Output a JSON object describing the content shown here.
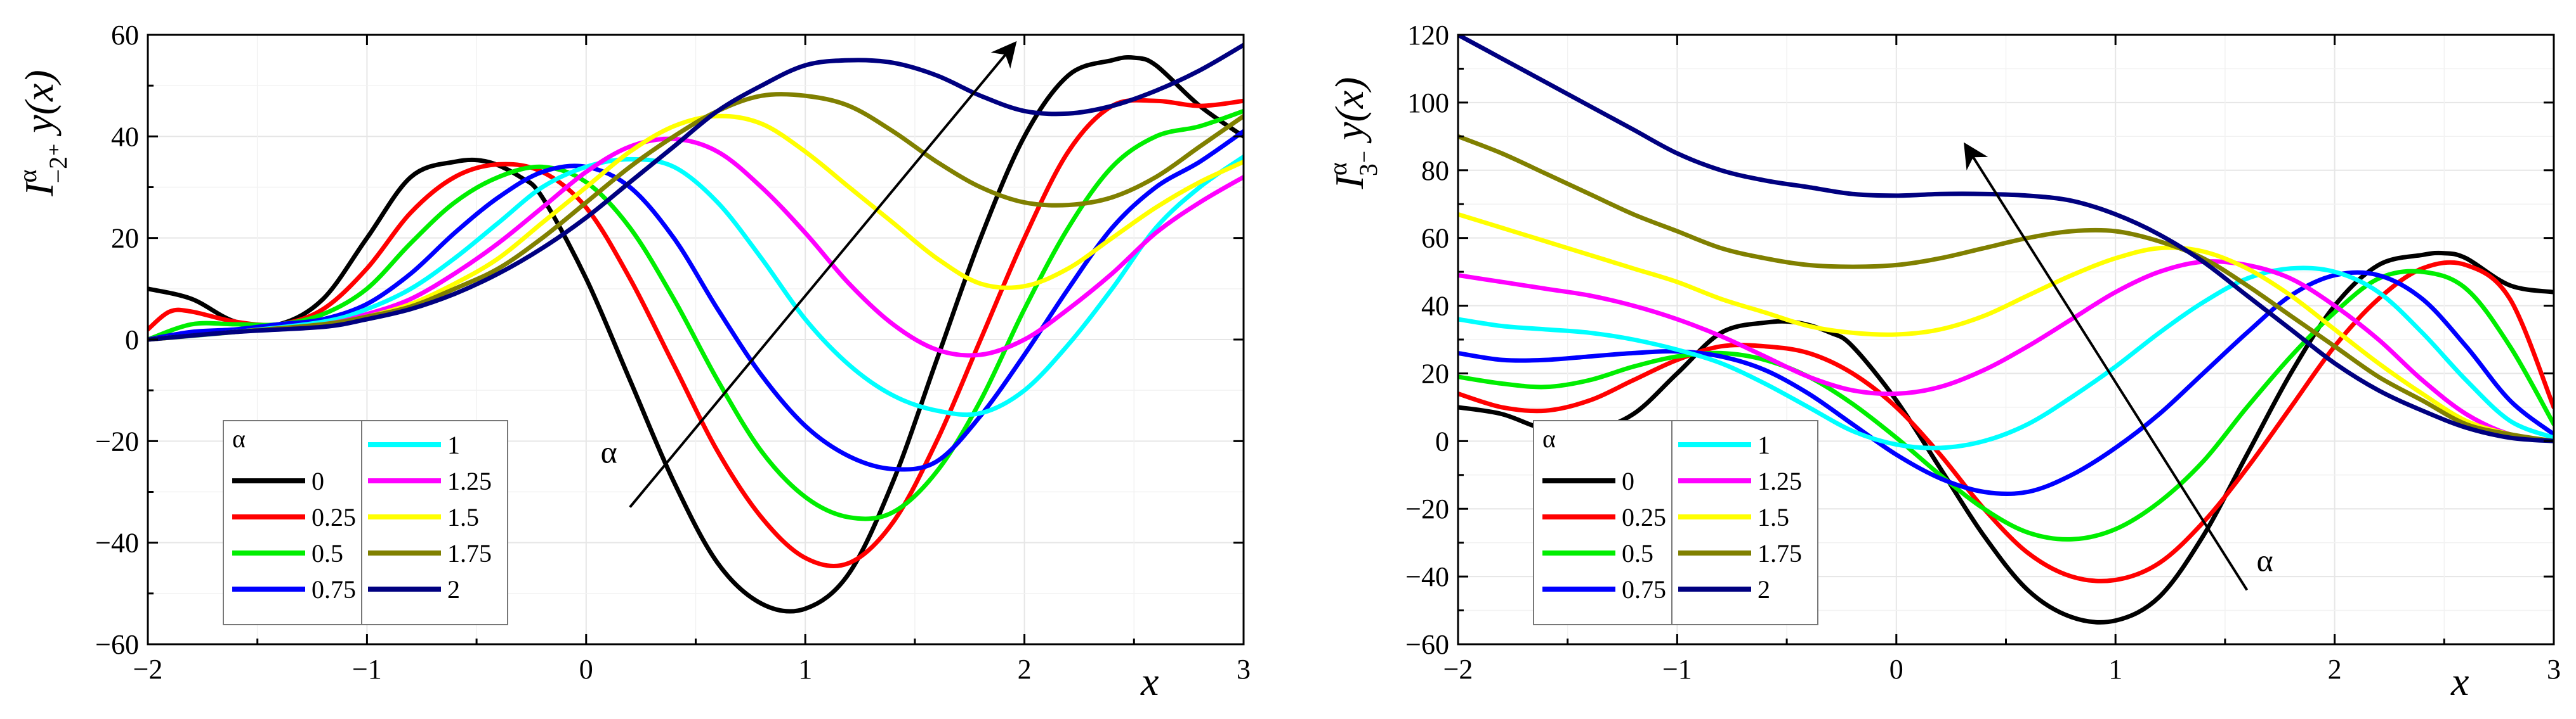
{
  "chart_data": [
    {
      "type": "line",
      "title": "",
      "ylabel": {
        "base": "I",
        "sup": "α",
        "sub": "−2⁺",
        "rest": " y(x)"
      },
      "xlabel": "x",
      "xlim": [
        -2,
        3
      ],
      "ylim": [
        -60,
        60
      ],
      "xticks": [
        -2,
        -1,
        0,
        1,
        2,
        3
      ],
      "yticks": [
        -60,
        -40,
        -20,
        0,
        20,
        40,
        60
      ],
      "xtick_labels": [
        "−2",
        "−1",
        "0",
        "1",
        "2",
        "3"
      ],
      "ytick_labels": [
        "−60",
        "−40",
        "−20",
        "0",
        "20",
        "40",
        "60"
      ],
      "grid": true,
      "legend_title": "α",
      "legend_position": "bottom-left",
      "arrow_label": "α",
      "arrow": {
        "from": [
          0.2,
          -33
        ],
        "to": [
          1.95,
          58
        ]
      },
      "series": [
        {
          "name": "0",
          "color": "#000000",
          "x": [
            -2,
            -1.8,
            -1.6,
            -1.4,
            -1.2,
            -1,
            -0.8,
            -0.6,
            -0.45,
            -0.3,
            -0.2,
            0,
            0.2,
            0.4,
            0.6,
            0.8,
            1,
            1.2,
            1.4,
            1.6,
            1.8,
            2,
            2.2,
            2.4,
            2.5,
            2.6,
            2.8,
            3
          ],
          "y": [
            10,
            8,
            3.5,
            3,
            8,
            20,
            32,
            35,
            35,
            32,
            28,
            12,
            -8,
            -28,
            -44,
            -52,
            -53,
            -46,
            -28,
            -4,
            20,
            40,
            52,
            55,
            55.5,
            54,
            46,
            40
          ]
        },
        {
          "name": "0.25",
          "color": "#ff0000",
          "x": [
            -2,
            -1.9,
            -1.8,
            -1.6,
            -1.4,
            -1.2,
            -1,
            -0.8,
            -0.6,
            -0.4,
            -0.2,
            0,
            0.2,
            0.4,
            0.6,
            0.8,
            1,
            1.2,
            1.4,
            1.6,
            1.8,
            2,
            2.2,
            2.4,
            2.6,
            2.8,
            3
          ],
          "y": [
            2,
            5.5,
            5.5,
            3.5,
            3,
            6,
            14,
            25,
            32,
            34.5,
            33,
            26,
            12,
            -5,
            -22,
            -35,
            -43,
            -44,
            -36,
            -20,
            0,
            20,
            37,
            46,
            47,
            46,
            47
          ]
        },
        {
          "name": "0.5",
          "color": "#00ee00",
          "x": [
            -2,
            -1.8,
            -1.6,
            -1.4,
            -1.2,
            -1,
            -0.8,
            -0.6,
            -0.4,
            -0.2,
            0,
            0.2,
            0.4,
            0.6,
            0.8,
            1,
            1.2,
            1.4,
            1.6,
            1.8,
            2,
            2.2,
            2.4,
            2.6,
            2.8,
            3
          ],
          "y": [
            0,
            3,
            3,
            3,
            5,
            10,
            19,
            27,
            32,
            34,
            31,
            22,
            8,
            -8,
            -22,
            -31,
            -35,
            -34,
            -26,
            -12,
            6,
            22,
            34,
            40,
            42,
            45
          ]
        },
        {
          "name": "0.75",
          "color": "#0000ff",
          "x": [
            -2,
            -1.8,
            -1.6,
            -1.4,
            -1.2,
            -1,
            -0.8,
            -0.6,
            -0.4,
            -0.2,
            0,
            0.2,
            0.4,
            0.6,
            0.8,
            1,
            1.2,
            1.4,
            1.6,
            1.8,
            2,
            2.2,
            2.4,
            2.6,
            2.8,
            3
          ],
          "y": [
            0,
            1.5,
            2,
            3,
            4,
            7,
            13,
            21,
            28,
            33,
            34,
            30,
            20,
            6,
            -7,
            -17,
            -23,
            -25.5,
            -24,
            -15,
            -3,
            10,
            22,
            30,
            35,
            41
          ]
        },
        {
          "name": "1",
          "color": "#00ffff",
          "x": [
            -2,
            -1.6,
            -1.2,
            -1,
            -0.8,
            -0.6,
            -0.4,
            -0.2,
            0,
            0.2,
            0.4,
            0.6,
            0.8,
            1,
            1.2,
            1.4,
            1.6,
            1.8,
            2,
            2.2,
            2.4,
            2.6,
            2.8,
            3
          ],
          "y": [
            0,
            1.5,
            3.5,
            6,
            10,
            16,
            23,
            30,
            34,
            35.5,
            34,
            27,
            16,
            4,
            -5,
            -11,
            -14,
            -14.5,
            -10,
            -1,
            10,
            22,
            30,
            36
          ]
        },
        {
          "name": "1.25",
          "color": "#ff00ff",
          "x": [
            -2,
            -1.6,
            -1.2,
            -1,
            -0.8,
            -0.6,
            -0.4,
            -0.2,
            0,
            0.2,
            0.4,
            0.6,
            0.8,
            1,
            1.2,
            1.4,
            1.6,
            1.8,
            2,
            2.2,
            2.4,
            2.6,
            2.8,
            3
          ],
          "y": [
            0,
            1.5,
            3,
            5,
            8,
            13,
            19,
            26,
            33,
            38,
            39.5,
            37,
            30,
            21,
            11,
            3,
            -2,
            -3,
            0,
            6,
            13,
            21,
            27,
            32
          ]
        },
        {
          "name": "1.5",
          "color": "#ffff00",
          "x": [
            -2,
            -1.6,
            -1.2,
            -1,
            -0.8,
            -0.6,
            -0.4,
            -0.2,
            0,
            0.2,
            0.4,
            0.6,
            0.8,
            1,
            1.2,
            1.4,
            1.6,
            1.8,
            2,
            2.2,
            2.4,
            2.6,
            2.8,
            3
          ],
          "y": [
            0,
            1.5,
            3,
            4.5,
            7,
            11,
            16,
            23,
            30,
            37,
            42,
            44,
            42.5,
            37,
            30,
            23,
            16,
            11,
            10.5,
            14,
            20,
            26,
            31,
            35
          ]
        },
        {
          "name": "1.75",
          "color": "#808000",
          "x": [
            -2,
            -1.6,
            -1.2,
            -1,
            -0.8,
            -0.6,
            -0.4,
            -0.2,
            0,
            0.2,
            0.4,
            0.6,
            0.8,
            1,
            1.2,
            1.4,
            1.6,
            1.8,
            2,
            2.2,
            2.4,
            2.6,
            2.8,
            3
          ],
          "y": [
            0,
            1.5,
            3,
            4.5,
            6.5,
            10,
            14,
            20,
            27,
            34,
            40,
            45,
            48,
            48,
            46,
            41,
            35,
            30,
            27,
            26.5,
            28,
            32,
            38,
            44
          ]
        },
        {
          "name": "2",
          "color": "#000080",
          "x": [
            -2,
            -1.6,
            -1.2,
            -1,
            -0.8,
            -0.6,
            -0.4,
            -0.2,
            0,
            0.2,
            0.4,
            0.6,
            0.8,
            1,
            1.2,
            1.4,
            1.6,
            1.8,
            2,
            2.2,
            2.4,
            2.6,
            2.8,
            3
          ],
          "y": [
            0,
            1.5,
            2.5,
            4,
            6,
            9,
            13,
            18,
            24,
            31,
            38,
            45,
            50,
            54,
            55,
            54.5,
            52,
            48,
            45,
            44.5,
            46,
            49,
            53,
            58
          ]
        }
      ]
    },
    {
      "type": "line",
      "title": "",
      "ylabel": {
        "base": "I",
        "sup": "α",
        "sub": "3⁻",
        "rest": " y(x)"
      },
      "xlabel": "x",
      "xlim": [
        -2,
        3
      ],
      "ylim": [
        -60,
        120
      ],
      "xticks": [
        -2,
        -1,
        0,
        1,
        2,
        3
      ],
      "yticks": [
        -60,
        -40,
        -20,
        0,
        20,
        40,
        60,
        80,
        100,
        120
      ],
      "xtick_labels": [
        "−2",
        "−1",
        "0",
        "1",
        "2",
        "3"
      ],
      "ytick_labels": [
        "−60",
        "−40",
        "−20",
        "0",
        "20",
        "40",
        "60",
        "80",
        "100",
        "120"
      ],
      "grid": true,
      "legend_title": "α",
      "legend_position": "bottom-left",
      "arrow_label": "α",
      "arrow": {
        "from": [
          1.6,
          -44
        ],
        "to": [
          0.32,
          87
        ]
      },
      "series": [
        {
          "name": "0",
          "color": "#000000",
          "x": [
            -2,
            -1.8,
            -1.6,
            -1.4,
            -1.2,
            -1,
            -0.8,
            -0.6,
            -0.45,
            -0.3,
            -0.2,
            0,
            0.2,
            0.4,
            0.6,
            0.8,
            1,
            1.2,
            1.4,
            1.6,
            1.8,
            2,
            2.2,
            2.4,
            2.5,
            2.6,
            2.8,
            3
          ],
          "y": [
            10,
            8,
            3.5,
            3,
            8,
            20,
            32,
            35,
            35,
            32,
            28,
            12,
            -8,
            -28,
            -44,
            -52,
            -53,
            -46,
            -28,
            -4,
            20,
            40,
            52,
            55,
            55.5,
            54,
            46,
            44
          ]
        },
        {
          "name": "0.25",
          "color": "#ff0000",
          "x": [
            -2,
            -1.8,
            -1.6,
            -1.4,
            -1.2,
            -1,
            -0.8,
            -0.6,
            -0.4,
            -0.2,
            0,
            0.2,
            0.4,
            0.6,
            0.8,
            1,
            1.2,
            1.4,
            1.6,
            1.8,
            2,
            2.2,
            2.4,
            2.6,
            2.8,
            3
          ],
          "y": [
            14,
            10,
            9,
            12,
            18,
            24,
            28,
            28,
            26,
            20,
            10,
            -4,
            -20,
            -33,
            -40,
            -41,
            -36,
            -24,
            -8,
            10,
            28,
            42,
            51,
            52,
            42,
            10
          ]
        },
        {
          "name": "0.5",
          "color": "#00ee00",
          "x": [
            -2,
            -1.8,
            -1.6,
            -1.4,
            -1.2,
            -1,
            -0.8,
            -0.6,
            -0.4,
            -0.2,
            0,
            0.2,
            0.4,
            0.6,
            0.8,
            1,
            1.2,
            1.4,
            1.6,
            1.8,
            2,
            2.2,
            2.4,
            2.6,
            2.8,
            3
          ],
          "y": [
            19,
            17,
            16,
            18,
            22,
            25,
            26,
            24,
            19,
            11,
            1,
            -10,
            -20,
            -27,
            -29,
            -26,
            -18,
            -6,
            10,
            25,
            38,
            48,
            50,
            45,
            28,
            5
          ]
        },
        {
          "name": "0.75",
          "color": "#0000ff",
          "x": [
            -2,
            -1.8,
            -1.6,
            -1.4,
            -1.2,
            -1,
            -0.8,
            -0.6,
            -0.4,
            -0.2,
            0,
            0.2,
            0.4,
            0.6,
            0.8,
            1,
            1.2,
            1.4,
            1.6,
            1.8,
            2,
            2.2,
            2.4,
            2.6,
            2.8,
            3
          ],
          "y": [
            26,
            24,
            24,
            25,
            26,
            26.5,
            25,
            21,
            14,
            5,
            -4,
            -11,
            -15,
            -15,
            -10,
            -2,
            8,
            20,
            32,
            43,
            49,
            49,
            42,
            28,
            12,
            2
          ]
        },
        {
          "name": "1",
          "color": "#00ffff",
          "x": [
            -2,
            -1.8,
            -1.6,
            -1.4,
            -1.2,
            -1,
            -0.8,
            -0.6,
            -0.4,
            -0.2,
            0,
            0.2,
            0.4,
            0.6,
            0.8,
            1,
            1.2,
            1.4,
            1.6,
            1.8,
            2,
            2.2,
            2.4,
            2.6,
            2.8,
            3
          ],
          "y": [
            36,
            34,
            33,
            32,
            30,
            27,
            23,
            17,
            10,
            3,
            -1,
            -2,
            0,
            5,
            13,
            22,
            32,
            41,
            48,
            51,
            50,
            44,
            32,
            18,
            6,
            1
          ]
        },
        {
          "name": "1.25",
          "color": "#ff00ff",
          "x": [
            -2,
            -1.8,
            -1.6,
            -1.4,
            -1.2,
            -1,
            -0.8,
            -0.6,
            -0.4,
            -0.2,
            0,
            0.2,
            0.4,
            0.6,
            0.8,
            1,
            1.2,
            1.4,
            1.6,
            1.8,
            2,
            2.2,
            2.4,
            2.6,
            2.8,
            3
          ],
          "y": [
            49,
            47,
            45,
            43,
            40,
            36,
            31,
            25,
            19,
            15,
            14,
            16,
            21,
            28,
            36,
            44,
            50,
            53,
            52,
            48,
            40,
            30,
            18,
            8,
            2,
            0
          ]
        },
        {
          "name": "1.5",
          "color": "#ffff00",
          "x": [
            -2,
            -1.8,
            -1.6,
            -1.4,
            -1.2,
            -1,
            -0.8,
            -0.6,
            -0.4,
            -0.2,
            0,
            0.2,
            0.4,
            0.6,
            0.8,
            1,
            1.2,
            1.4,
            1.6,
            1.8,
            2,
            2.2,
            2.4,
            2.6,
            2.8,
            3
          ],
          "y": [
            67,
            63,
            59,
            55,
            51,
            47,
            42,
            38,
            34,
            32,
            31.5,
            33,
            37,
            43,
            49,
            54,
            57,
            56,
            51,
            43,
            33,
            23,
            14,
            6,
            2,
            0
          ]
        },
        {
          "name": "1.75",
          "color": "#808000",
          "x": [
            -2,
            -1.8,
            -1.6,
            -1.4,
            -1.2,
            -1,
            -0.8,
            -0.6,
            -0.4,
            -0.2,
            0,
            0.2,
            0.4,
            0.6,
            0.8,
            1,
            1.2,
            1.4,
            1.6,
            1.8,
            2,
            2.2,
            2.4,
            2.6,
            2.8,
            3
          ],
          "y": [
            90,
            85,
            79,
            73,
            67,
            62,
            57,
            54,
            52,
            51.5,
            52,
            54,
            57,
            60,
            62,
            62,
            59,
            54,
            46,
            37,
            28,
            19,
            12,
            5,
            2,
            0
          ]
        },
        {
          "name": "2",
          "color": "#000080",
          "x": [
            -2,
            -1.8,
            -1.6,
            -1.4,
            -1.2,
            -1,
            -0.8,
            -0.6,
            -0.4,
            -0.2,
            0,
            0.2,
            0.4,
            0.6,
            0.8,
            1,
            1.2,
            1.4,
            1.6,
            1.8,
            2,
            2.2,
            2.4,
            2.6,
            2.8,
            3
          ],
          "y": [
            120,
            113,
            106,
            99,
            92,
            85,
            80,
            77,
            75,
            73,
            72.5,
            73,
            73,
            72.5,
            71,
            67,
            61,
            53,
            43,
            33,
            23,
            15,
            9,
            4,
            1,
            0
          ]
        }
      ]
    }
  ]
}
